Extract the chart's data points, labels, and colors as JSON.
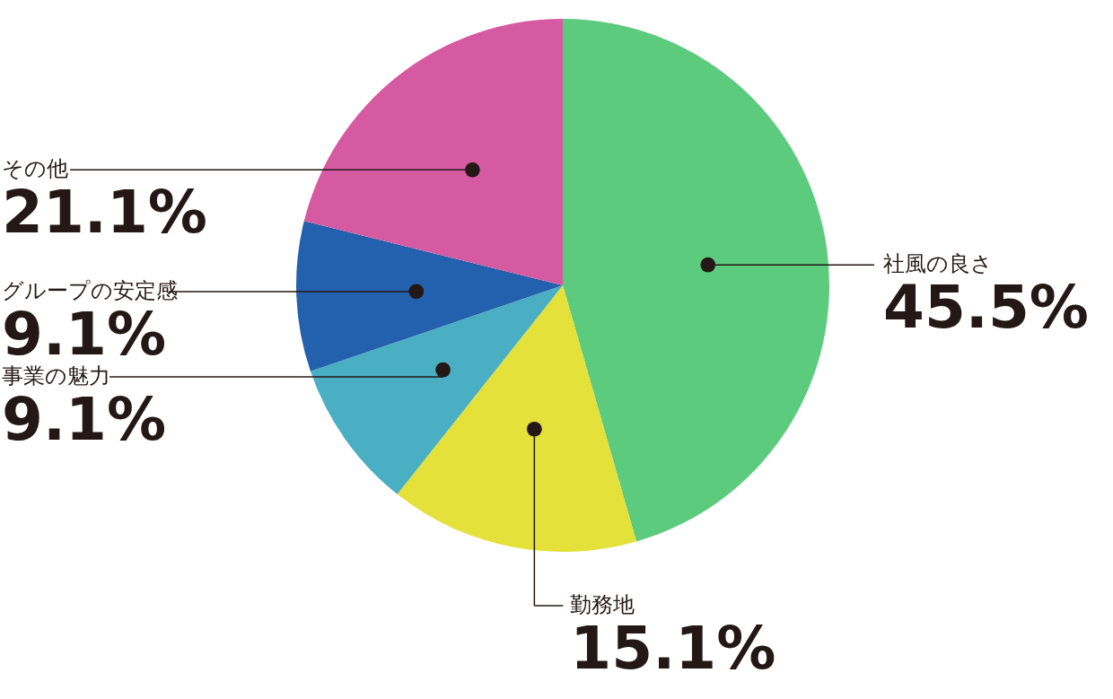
{
  "chart_data": {
    "type": "pie",
    "categories": [
      "社風の良さ",
      "勤務地",
      "事業の魅力",
      "グループの安定感",
      "その他"
    ],
    "values": [
      45.5,
      15.1,
      9.1,
      9.1,
      21.1
    ],
    "value_labels": [
      "45.5%",
      "15.1%",
      "9.1%",
      "9.1%",
      "21.1%"
    ],
    "colors": [
      "#5ccb7d",
      "#e3e13a",
      "#4aafc3",
      "#2360ad",
      "#d65aa1"
    ]
  }
}
